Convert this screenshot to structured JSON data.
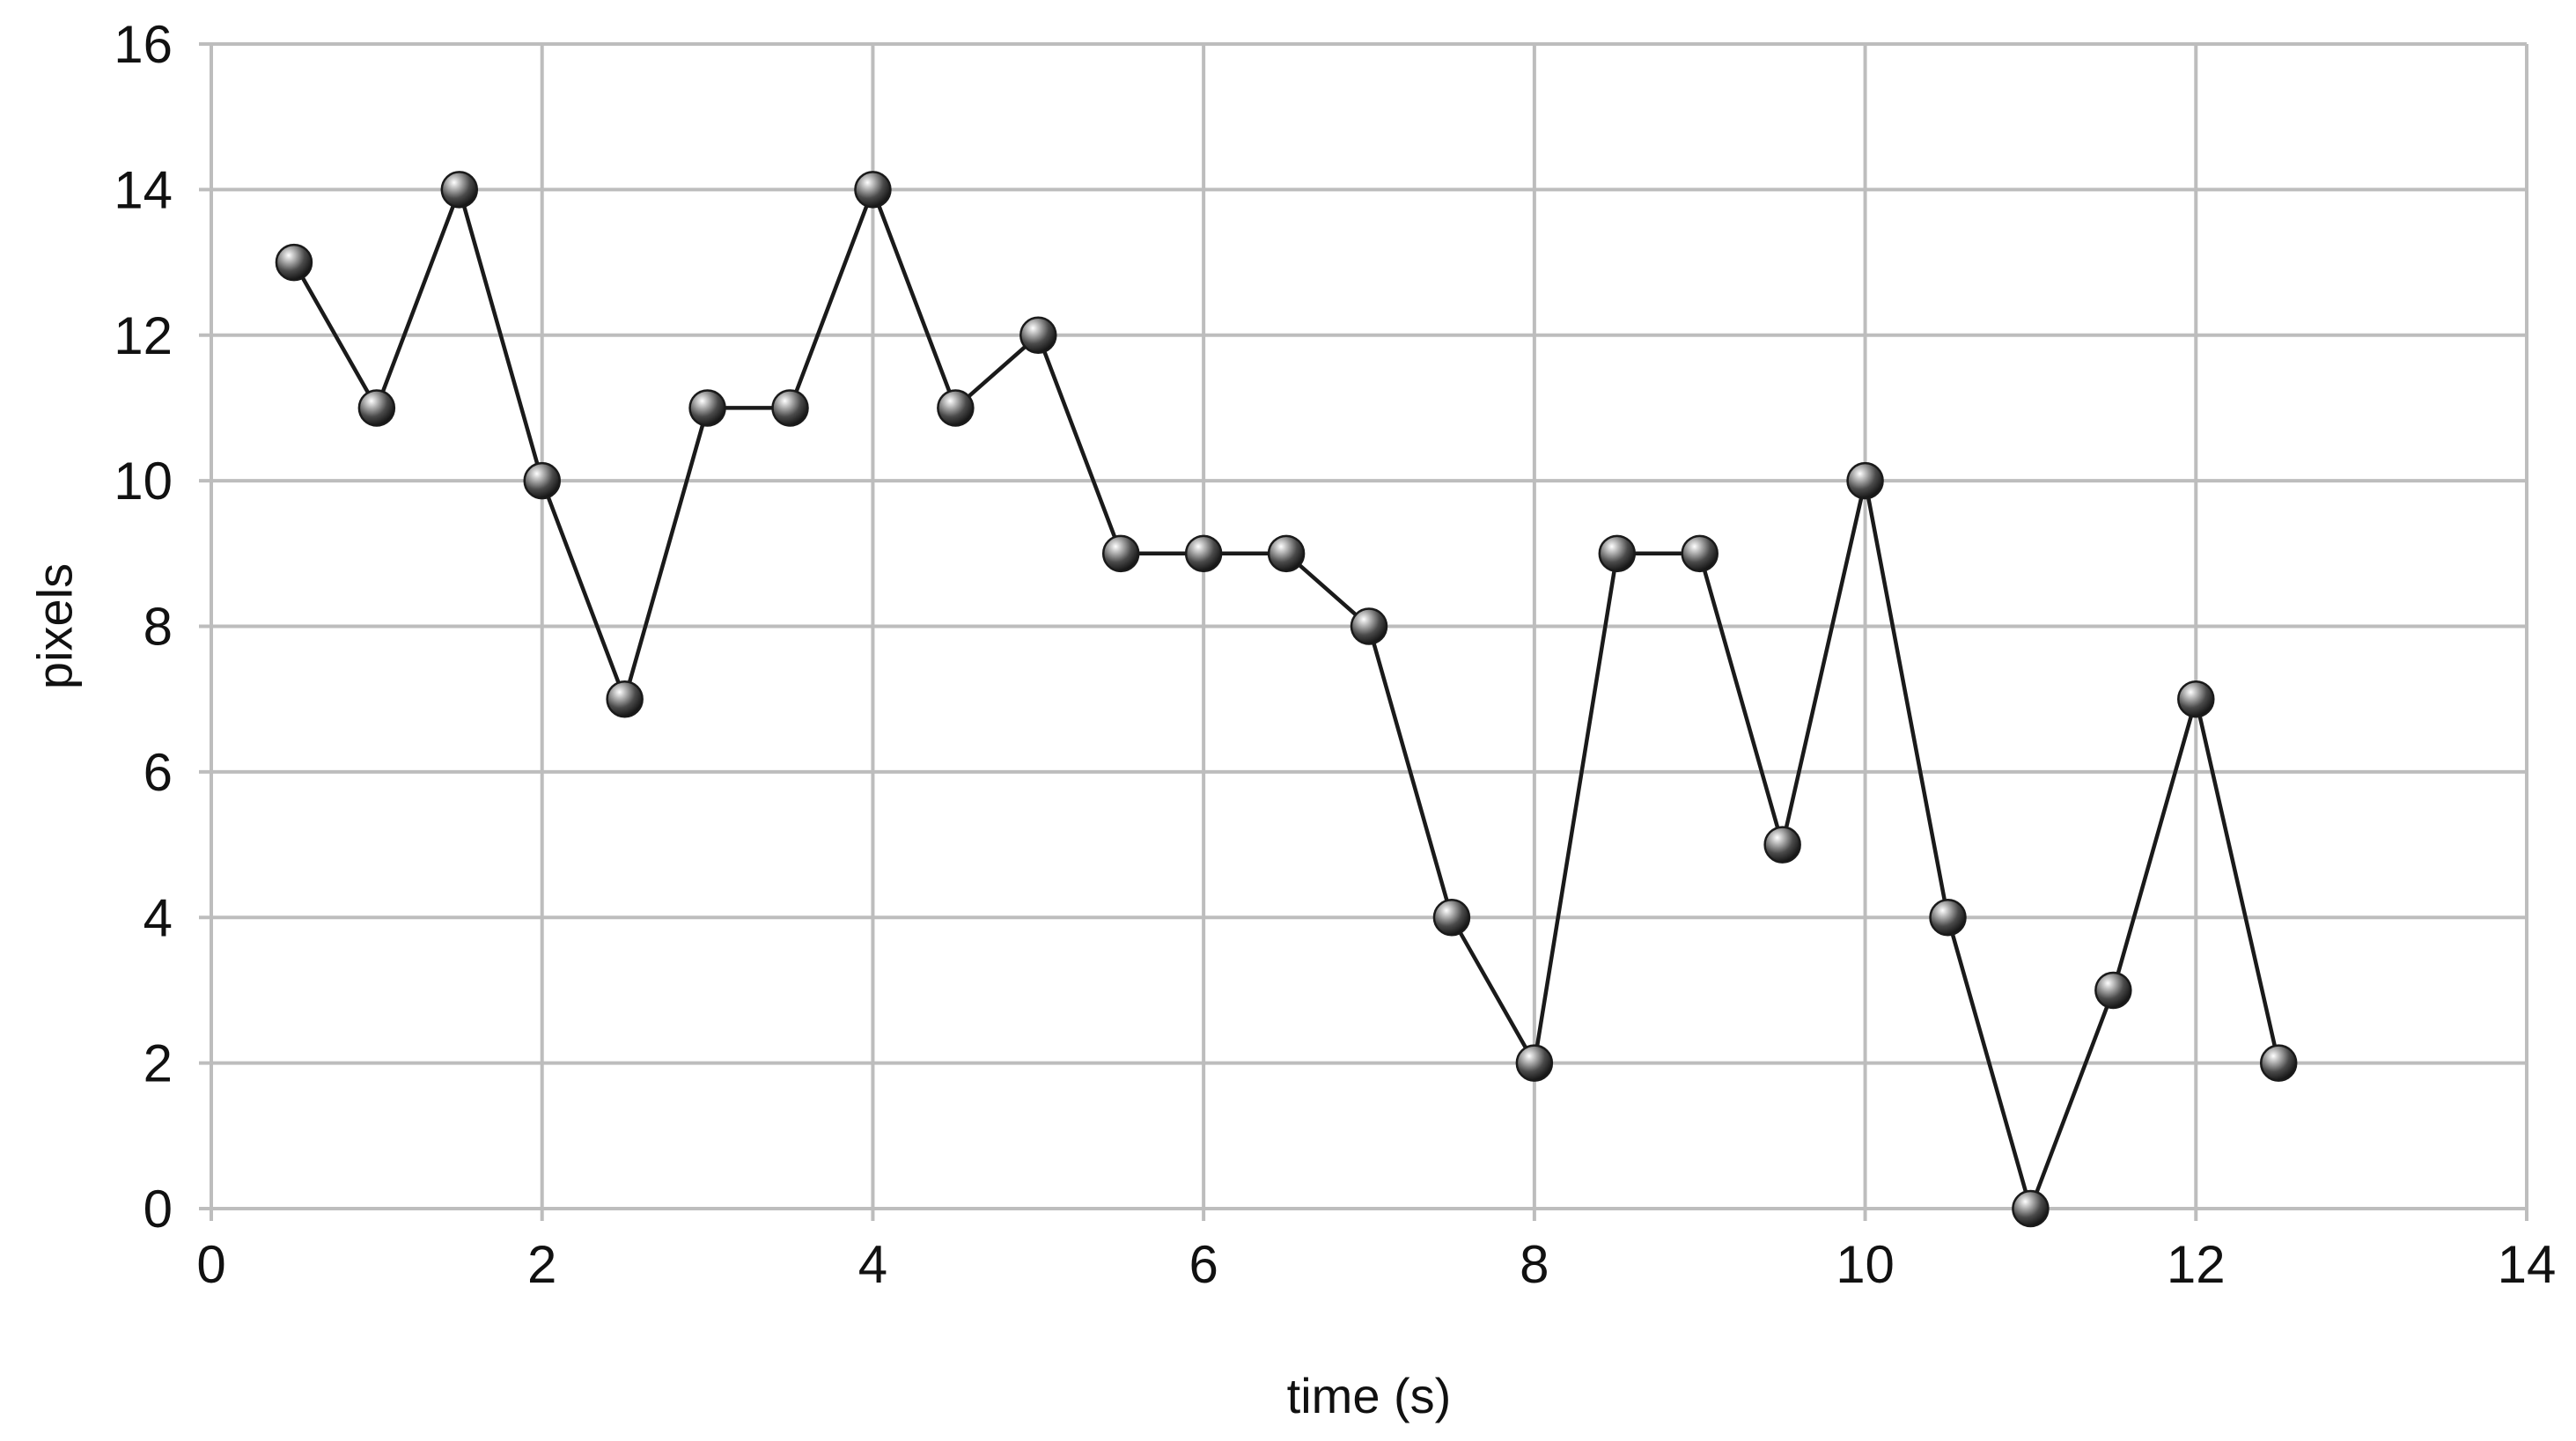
{
  "chart_data": {
    "type": "line",
    "title": "",
    "xlabel": "time (s)",
    "ylabel": "pixels",
    "xlim": [
      0,
      14
    ],
    "ylim": [
      0,
      16
    ],
    "xticks": [
      0,
      2,
      4,
      6,
      8,
      10,
      12,
      14
    ],
    "yticks": [
      0,
      2,
      4,
      6,
      8,
      10,
      12,
      14,
      16
    ],
    "grid": true,
    "legend": "none",
    "colors": {
      "line": "#1a1a1a",
      "marker": "#555555",
      "grid": "#bdbdbd",
      "text": "#111111"
    },
    "series": [
      {
        "x": [
          0.5,
          1,
          1.5,
          2,
          2.5,
          3,
          3.5,
          4,
          4.5,
          5,
          5.5,
          6,
          6.5,
          7,
          7.5,
          8,
          8.5,
          9,
          9.5,
          10,
          10.5,
          11,
          11.5,
          12,
          12.5
        ],
        "y": [
          13,
          11,
          14,
          10,
          7,
          11,
          11,
          14,
          11,
          12,
          9,
          9,
          9,
          8,
          4,
          2,
          9,
          9,
          5,
          10,
          4,
          0,
          3,
          7,
          2
        ]
      }
    ]
  }
}
